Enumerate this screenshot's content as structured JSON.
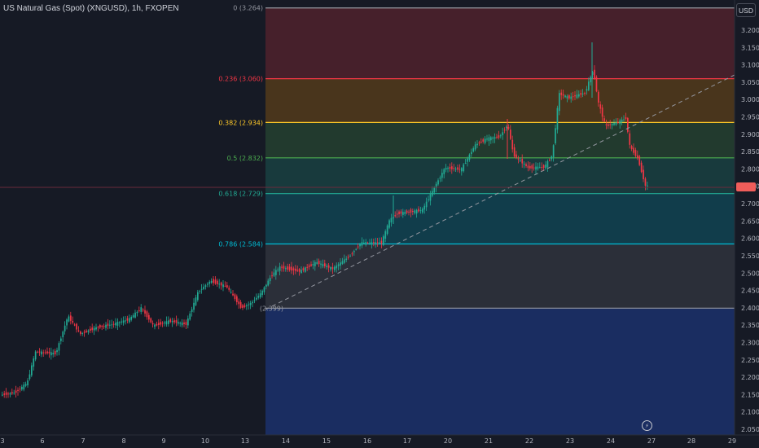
{
  "header": {
    "symbol_title": "US Natural Gas (Spot) (XNGUSD), 1h, FXOPEN",
    "currency": "USD"
  },
  "price_axis": {
    "labels": [
      "3.200",
      "3.150",
      "3.100",
      "3.050",
      "3.000",
      "2.950",
      "2.900",
      "2.850",
      "2.800",
      "2.750",
      "2.700",
      "2.650",
      "2.600",
      "2.550",
      "2.500",
      "2.450",
      "2.400",
      "2.350",
      "2.300",
      "2.250",
      "2.200",
      "2.150",
      "2.100",
      "2.050"
    ],
    "current_price_tag": "2.756"
  },
  "time_axis": {
    "labels": [
      "3",
      "6",
      "7",
      "8",
      "9",
      "10",
      "13",
      "14",
      "15",
      "16",
      "17",
      "20",
      "21",
      "22",
      "23",
      "24",
      "27",
      "28",
      "29"
    ]
  },
  "fibonacci": {
    "levels": [
      {
        "label": "0 (3.264)",
        "price": 3.264,
        "color": "#9598a1"
      },
      {
        "label": "0.236 (3.060)",
        "price": 3.06,
        "color": "#f23645"
      },
      {
        "label": "0.382 (2.934)",
        "price": 2.934,
        "color": "#ffc928"
      },
      {
        "label": "0.5 (2.832)",
        "price": 2.832,
        "color": "#4caf50"
      },
      {
        "label": "0.618 (2.729)",
        "price": 2.729,
        "color": "#22ab94"
      },
      {
        "label": "0.786 (2.584)",
        "price": 2.584,
        "color": "#00bcd4"
      },
      {
        "label": "(2.399)",
        "price": 2.399,
        "color": "#9598a1"
      }
    ]
  },
  "colors": {
    "up": "#22ab94",
    "down": "#f23645",
    "background": "#161a25"
  },
  "icons": {
    "flash": "lightning-icon"
  }
}
